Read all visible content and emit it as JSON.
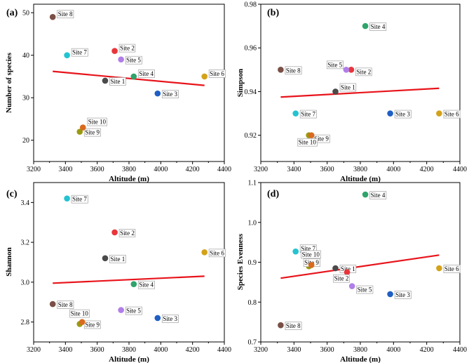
{
  "figure": {
    "panel_count": 4
  },
  "colors": {
    "trend_line": "#e8141b",
    "site_1": "#4a4a4a",
    "site_2": "#e8353b",
    "site_3": "#1f5fc4",
    "site_4": "#2ea46a",
    "site_5": "#b07ee8",
    "site_6": "#d4a21a",
    "site_7": "#24c3d0",
    "site_8": "#7a4f46",
    "site_9": "#9a9a12",
    "site_10": "#d96a1e"
  },
  "chart_data": [
    {
      "panel_label": "(a)",
      "type": "scatter",
      "xlabel": "Altitude (m)",
      "ylabel": "Number of species",
      "xlim": [
        3200,
        4400
      ],
      "ylim": [
        15,
        52
      ],
      "xticks": [
        "3200",
        "3400",
        "3600",
        "3800",
        "4000",
        "4200",
        "4400"
      ],
      "yticks": [
        "20",
        "30",
        "40",
        "50"
      ],
      "points": [
        {
          "label": "Site 1",
          "x": 3650,
          "y": 34
        },
        {
          "label": "Site 2",
          "x": 3710,
          "y": 41
        },
        {
          "label": "Site 3",
          "x": 3980,
          "y": 31
        },
        {
          "label": "Site 4",
          "x": 3830,
          "y": 35
        },
        {
          "label": "Site 5",
          "x": 3750,
          "y": 39
        },
        {
          "label": "Site 6",
          "x": 4275,
          "y": 35
        },
        {
          "label": "Site 7",
          "x": 3410,
          "y": 40
        },
        {
          "label": "Site 8",
          "x": 3320,
          "y": 49
        },
        {
          "label": "Site 9",
          "x": 3490,
          "y": 22
        },
        {
          "label": "Site 10",
          "x": 3510,
          "y": 23
        }
      ],
      "trend": {
        "x": [
          3320,
          4275
        ],
        "y": [
          36.2,
          32.9
        ]
      }
    },
    {
      "panel_label": "(b)",
      "type": "scatter",
      "xlabel": "Altitude (m)",
      "ylabel": "Simpson",
      "xlim": [
        3200,
        4400
      ],
      "ylim": [
        0.908,
        0.98
      ],
      "xticks": [
        "3200",
        "3400",
        "3600",
        "3800",
        "4000",
        "4200",
        "4400"
      ],
      "yticks": [
        "0.92",
        "0.94",
        "0.96",
        "0.98"
      ],
      "points": [
        {
          "label": "Site 1",
          "x": 3650,
          "y": 0.94
        },
        {
          "label": "Site 2",
          "x": 3745,
          "y": 0.95
        },
        {
          "label": "Site 3",
          "x": 3980,
          "y": 0.93
        },
        {
          "label": "Site 4",
          "x": 3830,
          "y": 0.97
        },
        {
          "label": "Site 5",
          "x": 3715,
          "y": 0.95
        },
        {
          "label": "Site 6",
          "x": 4275,
          "y": 0.93
        },
        {
          "label": "Site 7",
          "x": 3410,
          "y": 0.93
        },
        {
          "label": "Site 8",
          "x": 3320,
          "y": 0.95
        },
        {
          "label": "Site 9",
          "x": 3490,
          "y": 0.92
        },
        {
          "label": "Site 10",
          "x": 3505,
          "y": 0.92
        }
      ],
      "trend": {
        "x": [
          3320,
          4275
        ],
        "y": [
          0.9375,
          0.9415
        ]
      }
    },
    {
      "panel_label": "(c)",
      "type": "scatter",
      "xlabel": "Altitude (m)",
      "ylabel": "Shannon",
      "xlim": [
        3200,
        4400
      ],
      "ylim": [
        2.7,
        3.5
      ],
      "xticks": [
        "3200",
        "3400",
        "3600",
        "3800",
        "4000",
        "4200",
        "4400"
      ],
      "yticks": [
        "2.8",
        "3.0",
        "3.2",
        "3.4"
      ],
      "points": [
        {
          "label": "Site 1",
          "x": 3650,
          "y": 3.12
        },
        {
          "label": "Site 2",
          "x": 3710,
          "y": 3.25
        },
        {
          "label": "Site 3",
          "x": 3980,
          "y": 2.82
        },
        {
          "label": "Site 4",
          "x": 3830,
          "y": 2.99
        },
        {
          "label": "Site 5",
          "x": 3750,
          "y": 2.86
        },
        {
          "label": "Site 6",
          "x": 4275,
          "y": 3.15
        },
        {
          "label": "Site 7",
          "x": 3410,
          "y": 3.42
        },
        {
          "label": "Site 8",
          "x": 3320,
          "y": 2.89
        },
        {
          "label": "Site 9",
          "x": 3490,
          "y": 2.79
        },
        {
          "label": "Site 10",
          "x": 3505,
          "y": 2.8
        }
      ],
      "trend": {
        "x": [
          3320,
          4275
        ],
        "y": [
          2.995,
          3.03
        ]
      }
    },
    {
      "panel_label": "(d)",
      "type": "scatter",
      "xlabel": "Altitude (m)",
      "ylabel": "Species Evenness",
      "xlim": [
        3200,
        4400
      ],
      "ylim": [
        0.7,
        1.1
      ],
      "xticks": [
        "3200",
        "3400",
        "3600",
        "3800",
        "4000",
        "4200",
        "4400"
      ],
      "yticks": [
        "0.7",
        "0.8",
        "0.9",
        "1.0",
        "1.1"
      ],
      "points": [
        {
          "label": "Site 1",
          "x": 3650,
          "y": 0.885
        },
        {
          "label": "Site 2",
          "x": 3720,
          "y": 0.875
        },
        {
          "label": "Site 3",
          "x": 3980,
          "y": 0.82
        },
        {
          "label": "Site 4",
          "x": 3830,
          "y": 1.07
        },
        {
          "label": "Site 5",
          "x": 3750,
          "y": 0.84
        },
        {
          "label": "Site 6",
          "x": 4275,
          "y": 0.885
        },
        {
          "label": "Site 7",
          "x": 3410,
          "y": 0.927
        },
        {
          "label": "Site 8",
          "x": 3320,
          "y": 0.742
        },
        {
          "label": "Site 9",
          "x": 3490,
          "y": 0.89
        },
        {
          "label": "Site 10",
          "x": 3505,
          "y": 0.893
        }
      ],
      "trend": {
        "x": [
          3320,
          4275
        ],
        "y": [
          0.86,
          0.918
        ]
      }
    }
  ]
}
